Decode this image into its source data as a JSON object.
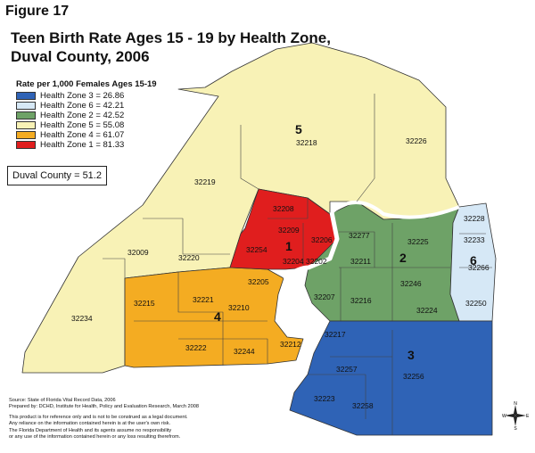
{
  "figure_label": "Figure 17",
  "title_line1": "Teen Birth Rate Ages 15 - 19  by Health Zone,",
  "title_line2": "Duval County, 2006",
  "legend": {
    "title": "Rate per 1,000 Females Ages 15-19",
    "items": [
      {
        "label": "Health Zone  3 = 26.86",
        "color": "#2f63b6"
      },
      {
        "label": "Health Zone  6 = 42.21",
        "color": "#d6e8f6"
      },
      {
        "label": "Health Zone  2 = 42.52",
        "color": "#6ea267"
      },
      {
        "label": "Health Zone  5 = 55.08",
        "color": "#f8f2b6"
      },
      {
        "label": "Health Zone  4 = 61.07",
        "color": "#f4ac22"
      },
      {
        "label": "Health Zone  1 = 81.33",
        "color": "#e01e1e"
      }
    ]
  },
  "county_rate": "Duval County = 51.2",
  "zone_numbers": {
    "z1": "1",
    "z2": "2",
    "z3": "3",
    "z4": "4",
    "z5": "5",
    "z6": "6"
  },
  "zips": {
    "z32218": "32218",
    "z32226": "32226",
    "z32219": "32219",
    "z32208": "32208",
    "z32209": "32209",
    "z32206": "32206",
    "z32254": "32254",
    "z32204": "32204",
    "z32202": "32202",
    "z32009": "32009",
    "z32220": "32220",
    "z32234": "32234",
    "z32205": "32205",
    "z32215": "32215",
    "z32221": "32221",
    "z32210": "32210",
    "z32212": "32212",
    "z32222": "32222",
    "z32244": "32244",
    "z32277": "32277",
    "z32225": "32225",
    "z32211": "32211",
    "z32246": "32246",
    "z32207": "32207",
    "z32216": "32216",
    "z32224": "32224",
    "z32228": "32228",
    "z32233": "32233",
    "z32266": "32266",
    "z32250": "32250",
    "z32217": "32217",
    "z32257": "32257",
    "z32256": "32256",
    "z32223": "32223",
    "z32258": "32258"
  },
  "source": {
    "line1": "Source:  State of Florida Vital Record Data,  2006",
    "line2": "Prepared by:  DCHD, Institute for Health, Policy and Evaluation Research, March 2008"
  },
  "disclaimer": {
    "line1": "This product is for reference only and is not to be construed as a legal document.",
    "line2": "Any reliance on the information contained herein is at the user's own risk.",
    "line3": "The Florida Department of Health and its agents assume no responsibility",
    "line4": "or any use of the information contained herein or any loss resulting therefrom."
  },
  "compass": {
    "n": "N",
    "s": "S",
    "e": "E",
    "w": "W"
  }
}
